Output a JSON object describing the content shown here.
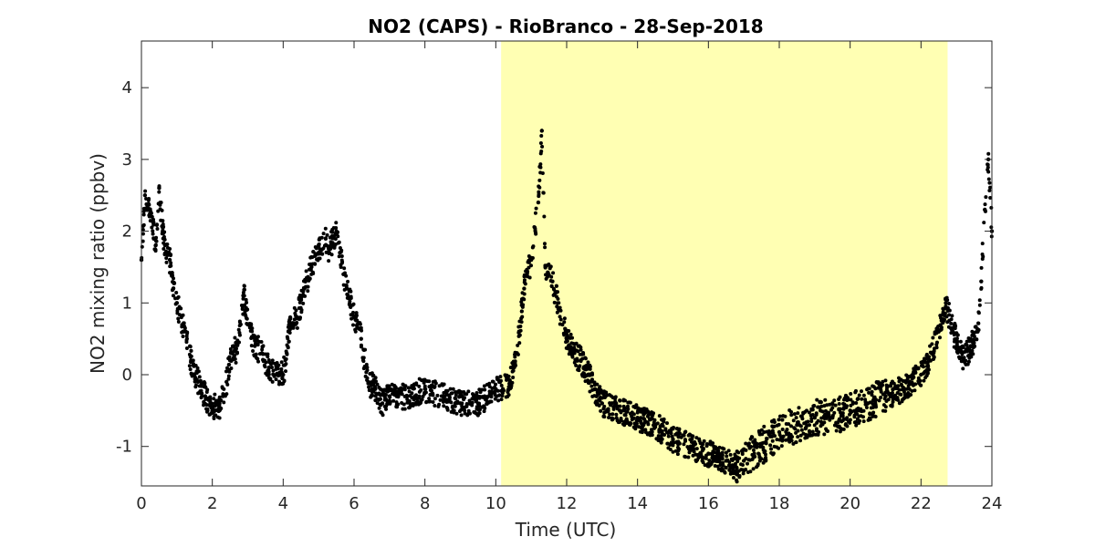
{
  "chart_data": {
    "type": "scatter",
    "title": "NO2 (CAPS) - RioBranco - 28-Sep-2018",
    "xlabel": "Time (UTC)",
    "ylabel": "NO2 mixing ratio (ppbv)",
    "xlim": [
      0,
      24
    ],
    "ylim": [
      -1.55,
      4.65
    ],
    "xticks": [
      0,
      2,
      4,
      6,
      8,
      10,
      12,
      14,
      16,
      18,
      20,
      22,
      24
    ],
    "yticks": [
      -1,
      0,
      1,
      2,
      3,
      4
    ],
    "grid": false,
    "legend": "none",
    "highlight_band": {
      "x_start": 10.15,
      "x_end": 22.75,
      "color": "#ffffb3"
    },
    "marker_color": "#000000",
    "series": [
      {
        "x": [
          0.0,
          0.1,
          0.2,
          0.3,
          0.4,
          0.5,
          0.6,
          0.7,
          0.8,
          0.9,
          1.0,
          1.2,
          1.4,
          1.6,
          1.8,
          2.0,
          2.1,
          2.2,
          2.3,
          2.4,
          2.5,
          2.6,
          2.7,
          2.8,
          2.9,
          3.0,
          3.2,
          3.4,
          3.6,
          3.8,
          4.0,
          4.1,
          4.2,
          4.4,
          4.6,
          4.8,
          5.0,
          5.2,
          5.3,
          5.4,
          5.5,
          5.6,
          5.7,
          5.8,
          6.0,
          6.2,
          6.4,
          6.6,
          6.8,
          7.0,
          7.2,
          7.5,
          8.0,
          8.5,
          9.0,
          9.5,
          10.0,
          10.2,
          10.4,
          10.6,
          10.8,
          11.0,
          11.2,
          11.3,
          11.4,
          11.6,
          11.8,
          12.0,
          12.2,
          12.4,
          12.6,
          12.8,
          13.0,
          13.5,
          14.0,
          14.5,
          15.0,
          15.5,
          16.0,
          16.5,
          16.8,
          17.0,
          17.5,
          18.0,
          18.5,
          19.0,
          19.5,
          20.0,
          20.5,
          21.0,
          21.5,
          22.0,
          22.3,
          22.5,
          22.7,
          22.9,
          23.0,
          23.2,
          23.4,
          23.6,
          23.7,
          23.8,
          23.9,
          24.0
        ],
        "y": [
          1.6,
          2.5,
          2.3,
          2.2,
          1.8,
          2.6,
          2.0,
          1.7,
          1.6,
          1.2,
          1.0,
          0.6,
          0.2,
          -0.1,
          -0.3,
          -0.5,
          -0.4,
          -0.5,
          -0.3,
          -0.1,
          0.2,
          0.4,
          0.3,
          0.7,
          1.1,
          0.7,
          0.4,
          0.3,
          0.1,
          0.0,
          0.0,
          0.3,
          0.8,
          0.8,
          1.2,
          1.5,
          1.7,
          1.9,
          1.7,
          1.9,
          2.0,
          1.7,
          1.4,
          1.2,
          0.8,
          0.5,
          -0.1,
          -0.2,
          -0.4,
          -0.3,
          -0.3,
          -0.3,
          -0.2,
          -0.3,
          -0.4,
          -0.4,
          -0.2,
          -0.2,
          -0.1,
          0.3,
          1.2,
          1.6,
          2.4,
          3.4,
          1.5,
          1.3,
          0.9,
          0.5,
          0.3,
          0.2,
          0.0,
          -0.2,
          -0.4,
          -0.5,
          -0.6,
          -0.7,
          -0.9,
          -1.0,
          -1.1,
          -1.2,
          -1.3,
          -1.2,
          -1.0,
          -0.8,
          -0.7,
          -0.6,
          -0.6,
          -0.5,
          -0.4,
          -0.3,
          -0.2,
          0.0,
          0.3,
          0.6,
          1.0,
          0.6,
          0.5,
          0.2,
          0.4,
          0.6,
          1.3,
          2.3,
          3.0,
          2.0
        ]
      }
    ]
  }
}
